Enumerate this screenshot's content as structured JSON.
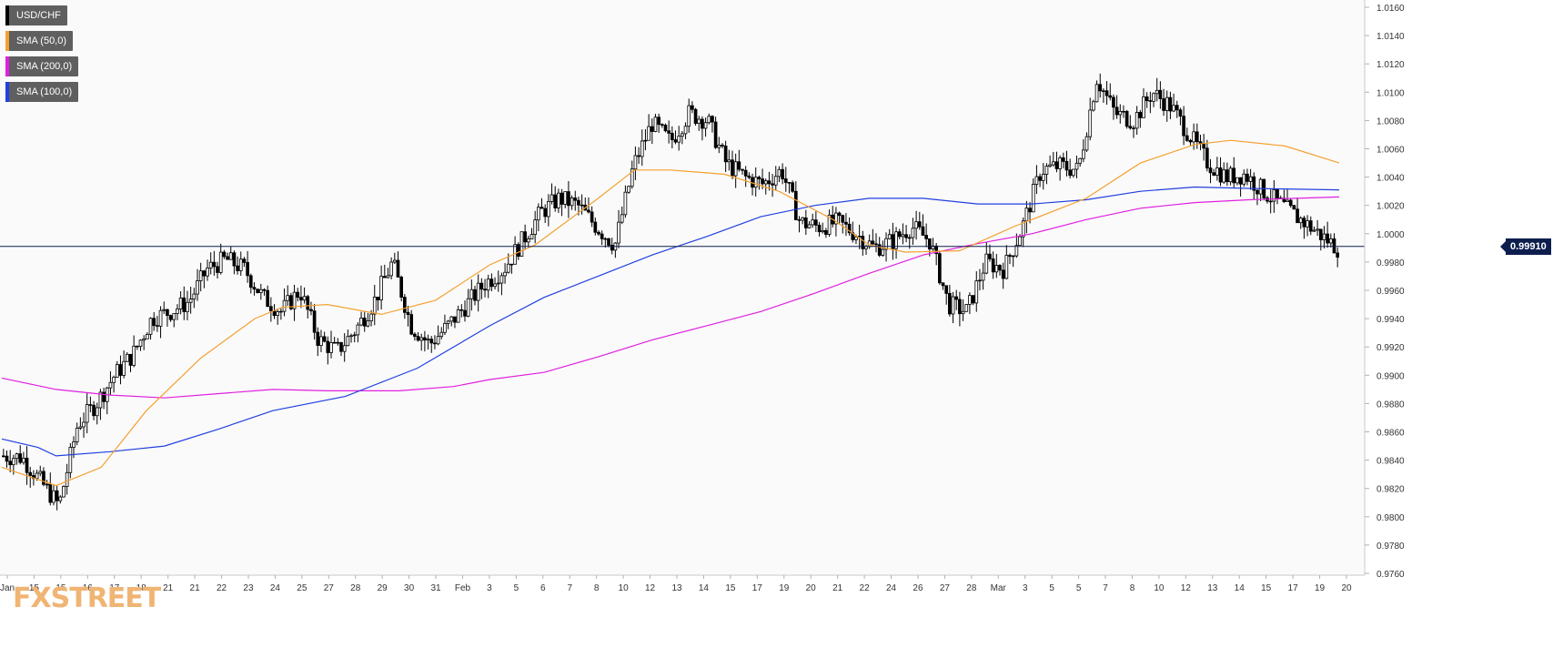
{
  "legend": [
    {
      "label": "USD/CHF",
      "color": "#000000"
    },
    {
      "label": "SMA (50,0)",
      "color": "#f5a030"
    },
    {
      "label": "SMA (200,0)",
      "color": "#e020e0"
    },
    {
      "label": "SMA (100,0)",
      "color": "#2040e0"
    }
  ],
  "logo": "FXSTREET",
  "last_price_label": "0.99910",
  "chart_data": {
    "type": "candlestick",
    "symbol": "USD/CHF",
    "y_ticks": [
      "1.0160",
      "1.0140",
      "1.0120",
      "1.0100",
      "1.0080",
      "1.0060",
      "1.0040",
      "1.0020",
      "1.0000",
      "0.9980",
      "0.9960",
      "0.9940",
      "0.9920",
      "0.9900",
      "0.9880",
      "0.9860",
      "0.9840",
      "0.9820",
      "0.9800",
      "0.9780",
      "0.9760"
    ],
    "ylim": [
      0.976,
      1.016
    ],
    "x_ticks": [
      "Jan",
      "15",
      "15",
      "16",
      "17",
      "18",
      "21",
      "21",
      "22",
      "23",
      "24",
      "25",
      "27",
      "28",
      "29",
      "30",
      "31",
      "Feb",
      "3",
      "5",
      "6",
      "7",
      "8",
      "10",
      "12",
      "13",
      "14",
      "15",
      "17",
      "19",
      "20",
      "21",
      "22",
      "24",
      "26",
      "27",
      "28",
      "Mar",
      "3",
      "5",
      "5",
      "7",
      "8",
      "10",
      "12",
      "13",
      "14",
      "15",
      "17",
      "19",
      "20"
    ],
    "last_price": 0.9991,
    "close_path": [
      [
        0,
        0.9843
      ],
      [
        1,
        0.9842
      ],
      [
        2,
        0.9825
      ],
      [
        3,
        0.9808
      ],
      [
        4,
        0.9865
      ],
      [
        5,
        0.988
      ],
      [
        6,
        0.99
      ],
      [
        7,
        0.9915
      ],
      [
        8,
        0.994
      ],
      [
        9,
        0.9945
      ],
      [
        10,
        0.9952
      ],
      [
        11,
        0.9975
      ],
      [
        12,
        0.9982
      ],
      [
        13,
        0.9975
      ],
      [
        14,
        0.9955
      ],
      [
        15,
        0.9945
      ],
      [
        16,
        0.996
      ],
      [
        17,
        0.9925
      ],
      [
        18,
        0.9917
      ],
      [
        19,
        0.9932
      ],
      [
        20,
        0.9952
      ],
      [
        21,
        0.998
      ],
      [
        22,
        0.9935
      ],
      [
        23,
        0.9922
      ],
      [
        24,
        0.9935
      ],
      [
        25,
        0.995
      ],
      [
        26,
        0.9965
      ],
      [
        27,
        0.9975
      ],
      [
        28,
        0.9995
      ],
      [
        29,
        1.0015
      ],
      [
        30,
        1.0025
      ],
      [
        31,
        1.002
      ],
      [
        32,
        1.0005
      ],
      [
        33,
        0.9992
      ],
      [
        34,
        1.0048
      ],
      [
        35,
        1.0078
      ],
      [
        36,
        1.0065
      ],
      [
        37,
        1.0085
      ],
      [
        38,
        1.008
      ],
      [
        39,
        1.005
      ],
      [
        40,
        1.004
      ],
      [
        41,
        1.0035
      ],
      [
        42,
        1.0045
      ],
      [
        43,
        1.0008
      ],
      [
        44,
        1.0005
      ],
      [
        45,
        1.0008
      ],
      [
        46,
        1.0
      ],
      [
        47,
        0.999
      ],
      [
        48,
        0.9995
      ],
      [
        49,
        1.0005
      ],
      [
        50,
        0.9995
      ],
      [
        51,
        0.995
      ],
      [
        52,
        0.9945
      ],
      [
        53,
        0.998
      ],
      [
        54,
        0.9975
      ],
      [
        55,
        1.0005
      ],
      [
        56,
        1.0045
      ],
      [
        57,
        1.0048
      ],
      [
        58,
        1.0045
      ],
      [
        59,
        1.011
      ],
      [
        60,
        1.0085
      ],
      [
        61,
        1.008
      ],
      [
        62,
        1.01
      ],
      [
        63,
        1.009
      ],
      [
        64,
        1.007
      ],
      [
        65,
        1.005
      ],
      [
        66,
        1.004
      ],
      [
        67,
        1.0042
      ],
      [
        68,
        1.003
      ],
      [
        69,
        1.002
      ],
      [
        70,
        1.001
      ],
      [
        71,
        1.0
      ],
      [
        72,
        0.999
      ]
    ],
    "sma_50": [
      [
        0,
        0.9835
      ],
      [
        6,
        0.9822
      ],
      [
        11,
        0.9835
      ],
      [
        16,
        0.9875
      ],
      [
        22,
        0.9912
      ],
      [
        28,
        0.994
      ],
      [
        31,
        0.9948
      ],
      [
        36,
        0.995
      ],
      [
        42,
        0.9943
      ],
      [
        48,
        0.9953
      ],
      [
        54,
        0.9978
      ],
      [
        59,
        0.9992
      ],
      [
        66,
        1.0025
      ],
      [
        70,
        1.0045
      ],
      [
        74,
        1.0045
      ],
      [
        80,
        1.0042
      ],
      [
        86,
        1.003
      ],
      [
        92,
        1.001
      ],
      [
        96,
        0.9992
      ],
      [
        100,
        0.9987
      ],
      [
        106,
        0.9988
      ],
      [
        112,
        1.0005
      ],
      [
        120,
        1.0025
      ],
      [
        126,
        1.005
      ],
      [
        132,
        1.0063
      ],
      [
        136,
        1.0066
      ],
      [
        142,
        1.0062
      ],
      [
        148,
        1.005
      ]
    ],
    "sma_100": [
      [
        0,
        0.9855
      ],
      [
        4,
        0.9849
      ],
      [
        6,
        0.9843
      ],
      [
        12,
        0.9846
      ],
      [
        18,
        0.985
      ],
      [
        24,
        0.9862
      ],
      [
        30,
        0.9875
      ],
      [
        38,
        0.9885
      ],
      [
        46,
        0.9905
      ],
      [
        54,
        0.9935
      ],
      [
        60,
        0.9955
      ],
      [
        66,
        0.997
      ],
      [
        72,
        0.9985
      ],
      [
        78,
        0.9998
      ],
      [
        84,
        1.0012
      ],
      [
        90,
        1.002
      ],
      [
        96,
        1.0025
      ],
      [
        102,
        1.0025
      ],
      [
        108,
        1.0021
      ],
      [
        114,
        1.0021
      ],
      [
        120,
        1.0024
      ],
      [
        126,
        1.003
      ],
      [
        132,
        1.0033
      ],
      [
        138,
        1.0032
      ],
      [
        148,
        1.0031
      ]
    ],
    "sma_200": [
      [
        0,
        0.9898
      ],
      [
        6,
        0.989
      ],
      [
        12,
        0.9886
      ],
      [
        18,
        0.9884
      ],
      [
        24,
        0.9887
      ],
      [
        30,
        0.989
      ],
      [
        36,
        0.9889
      ],
      [
        44,
        0.9889
      ],
      [
        50,
        0.9892
      ],
      [
        54,
        0.9897
      ],
      [
        60,
        0.9902
      ],
      [
        66,
        0.9913
      ],
      [
        72,
        0.9925
      ],
      [
        78,
        0.9935
      ],
      [
        84,
        0.9945
      ],
      [
        90,
        0.9958
      ],
      [
        96,
        0.9972
      ],
      [
        102,
        0.9985
      ],
      [
        108,
        0.9993
      ],
      [
        114,
        1.0
      ],
      [
        120,
        1.001
      ],
      [
        126,
        1.0018
      ],
      [
        132,
        1.0022
      ],
      [
        138,
        1.0024
      ],
      [
        148,
        1.0026
      ]
    ]
  }
}
